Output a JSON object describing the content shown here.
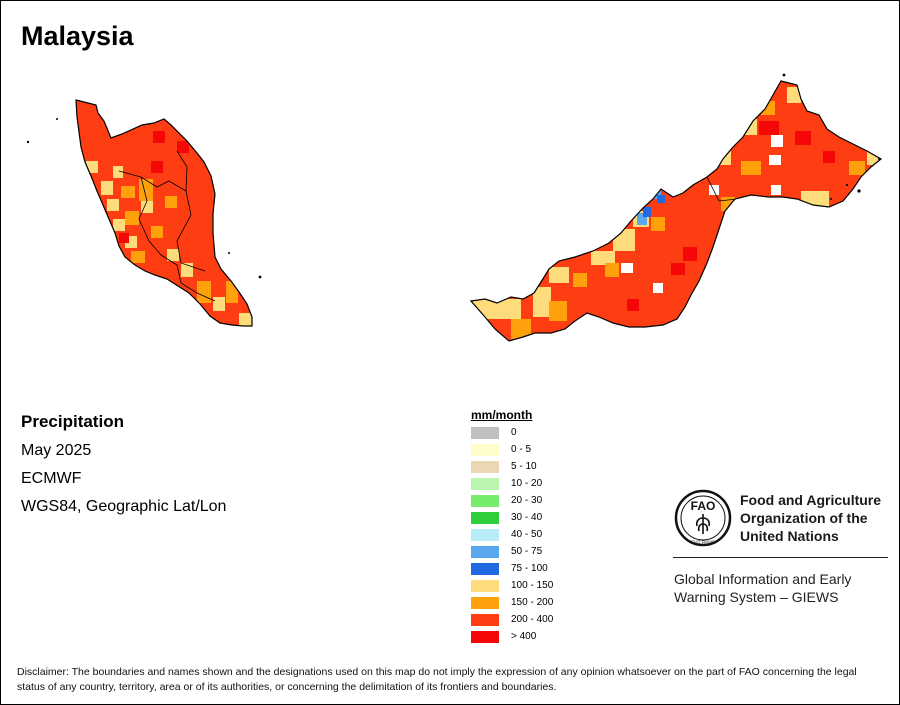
{
  "title": "Malaysia",
  "map": {
    "layer": "Precipitation",
    "period": "May 2025",
    "source": "ECMWF",
    "projection": "WGS84, Geographic Lat/Lon"
  },
  "legend": {
    "unit": "mm/month",
    "classes": [
      {
        "label": "0",
        "color": "#c0c0c0"
      },
      {
        "label": "0 - 5",
        "color": "#fefcc8"
      },
      {
        "label": "5 - 10",
        "color": "#ecd7b5"
      },
      {
        "label": "10 - 20",
        "color": "#b9f5ad"
      },
      {
        "label": "20 - 30",
        "color": "#77ec6b"
      },
      {
        "label": "30 - 40",
        "color": "#2fcc3b"
      },
      {
        "label": "40 - 50",
        "color": "#b7ebf8"
      },
      {
        "label": "50 - 75",
        "color": "#58a7ef"
      },
      {
        "label": "75 - 100",
        "color": "#2169e0"
      },
      {
        "label": "100 - 150",
        "color": "#fedb7b"
      },
      {
        "label": "150 - 200",
        "color": "#ffa10d"
      },
      {
        "label": "200 - 400",
        "color": "#fe3e12"
      },
      {
        "label": "> 400",
        "color": "#f60707"
      }
    ]
  },
  "fao": {
    "name_line1": "Food and Agriculture",
    "name_line2": "Organization of the",
    "name_line3": "United Nations",
    "logo_letters": "FAO",
    "logo_motto": "FIAT PANIS",
    "giews_line1": "Global Information and Early",
    "giews_line2": "Warning System – GIEWS"
  },
  "disclaimer": "Disclaimer: The boundaries and names shown and the designations used on this map do not imply the expression of any opinion whatsoever on the part of FAO concerning the legal status of any country, territory, area or of its authorities, or concerning the delimitation of its frontiers and boundaries."
}
